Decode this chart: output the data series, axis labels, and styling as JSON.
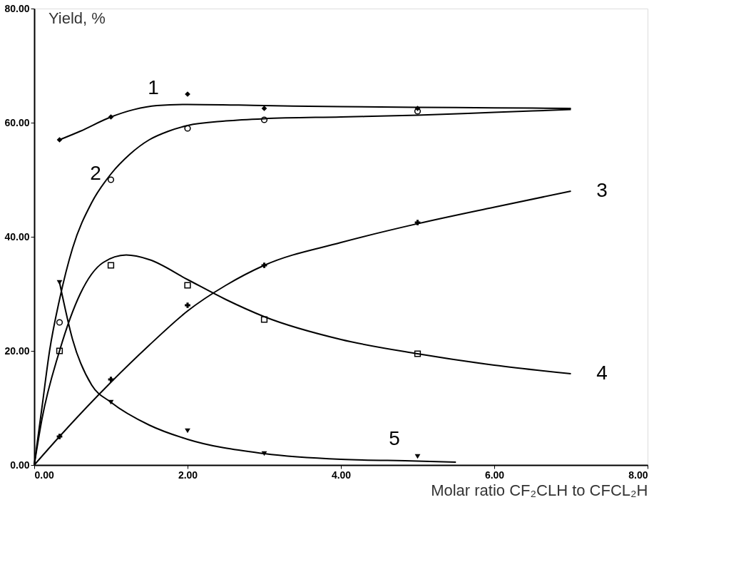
{
  "chart_data": {
    "type": "line",
    "ylabel": "Yield, %",
    "xlabel": "Molar ratio  CF₂CLH  to  CFCL₂H",
    "xlim": [
      0,
      8
    ],
    "ylim": [
      0,
      80
    ],
    "xticks": [
      {
        "value": 0,
        "label": "0.00"
      },
      {
        "value": 2,
        "label": "2.00"
      },
      {
        "value": 4,
        "label": "4.00"
      },
      {
        "value": 6,
        "label": "6.00"
      },
      {
        "value": 8,
        "label": "8.00"
      }
    ],
    "yticks": [
      {
        "value": 0,
        "label": "0.00"
      },
      {
        "value": 20,
        "label": "20.00"
      },
      {
        "value": 40,
        "label": "40.00"
      },
      {
        "value": 60,
        "label": "60.00"
      },
      {
        "value": 80,
        "label": "80.00"
      }
    ],
    "grid": false,
    "series": [
      {
        "color": "#000000",
        "marker": "none",
        "x": [
          0.33,
          0.6,
          1,
          1.3,
          1.6,
          2,
          3,
          4,
          5,
          6,
          7
        ],
        "values": [
          57,
          58.5,
          61,
          62.3,
          63,
          63.2,
          63,
          62.8,
          62.7,
          62.6,
          62.5
        ]
      },
      {
        "color": "#000000",
        "marker": "none",
        "x": [
          0,
          0.1,
          0.2,
          0.33,
          0.5,
          0.75,
          1,
          1.25,
          1.5,
          1.75,
          2,
          2.5,
          3,
          4,
          5,
          6,
          7
        ],
        "values": [
          0,
          10,
          20,
          29,
          38,
          46,
          51,
          54.5,
          57,
          58.5,
          59.5,
          60.3,
          60.7,
          61,
          61.3,
          61.8,
          62.3
        ]
      },
      {
        "color": "#000000",
        "marker": "none",
        "x": [
          0,
          0.33,
          1,
          1.5,
          2,
          2.5,
          3,
          4,
          5,
          6,
          7
        ],
        "values": [
          0,
          5,
          14.5,
          21,
          27,
          31.5,
          35,
          39,
          42.3,
          45.2,
          48
        ]
      },
      {
        "color": "#000000",
        "marker": "none",
        "x": [
          0,
          0.1,
          0.33,
          0.6,
          0.9,
          1.2,
          1.5,
          2,
          2.5,
          3,
          4,
          5,
          6,
          7
        ],
        "values": [
          0,
          8,
          20,
          30,
          35.5,
          36.8,
          36,
          32.5,
          29,
          26,
          22,
          19.5,
          17.5,
          16
        ]
      },
      {
        "color": "#000000",
        "marker": "none",
        "x": [
          0.33,
          0.5,
          0.75,
          1,
          1.5,
          2,
          3,
          4,
          5,
          5.5
        ],
        "values": [
          32,
          22,
          14,
          11,
          7,
          4.5,
          2,
          1,
          0.7,
          0.5
        ]
      },
      {
        "type": "scatter",
        "color": "#000000",
        "marker": "diamond",
        "x": [
          0.33,
          1,
          2,
          3,
          5
        ],
        "values": [
          57,
          61,
          65,
          62.5,
          62.5
        ]
      },
      {
        "type": "scatter",
        "color": "#000000",
        "marker": "circle",
        "x": [
          0.33,
          1,
          2,
          3,
          5
        ],
        "values": [
          25,
          50,
          59,
          60.5,
          62
        ]
      },
      {
        "type": "scatter",
        "color": "#000000",
        "marker": "cross",
        "x": [
          0.33,
          1,
          2,
          3,
          5
        ],
        "values": [
          5,
          15,
          28,
          35,
          42.5
        ]
      },
      {
        "type": "scatter",
        "color": "#000000",
        "marker": "square",
        "x": [
          0.33,
          1,
          2,
          3,
          5
        ],
        "values": [
          20,
          35,
          31.5,
          25.5,
          19.5
        ]
      },
      {
        "type": "scatter",
        "color": "#000000",
        "marker": "triangle",
        "x": [
          0.33,
          1,
          2,
          3,
          5
        ],
        "values": [
          32,
          11,
          6,
          2,
          1.5
        ]
      }
    ],
    "annotations": [
      "1",
      "2",
      "3",
      "4",
      "5"
    ]
  }
}
